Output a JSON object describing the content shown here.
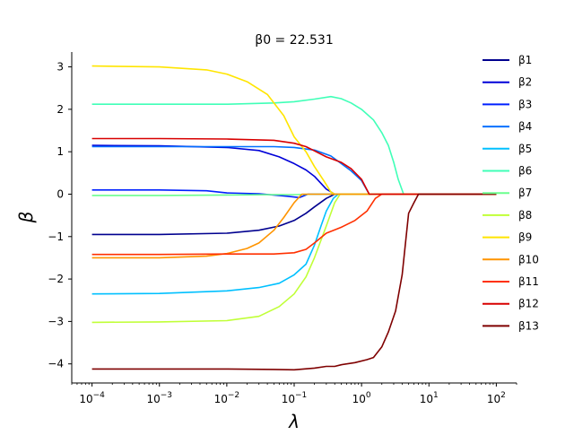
{
  "chart_data": {
    "type": "line",
    "title": "β0 = 22.531",
    "xlabel": "λ",
    "ylabel": "β",
    "xscale": "log",
    "xlim": [
      5e-05,
      200
    ],
    "ylim": [
      -4.45,
      3.35
    ],
    "x_ticks": [
      {
        "value": 0.0001,
        "mant": "10",
        "exp": "−4"
      },
      {
        "value": 0.001,
        "mant": "10",
        "exp": "−3"
      },
      {
        "value": 0.01,
        "mant": "10",
        "exp": "−2"
      },
      {
        "value": 0.1,
        "mant": "10",
        "exp": "−1"
      },
      {
        "value": 1,
        "mant": "10",
        "exp": "0"
      },
      {
        "value": 10,
        "mant": "10",
        "exp": "1"
      },
      {
        "value": 100,
        "mant": "10",
        "exp": "2"
      }
    ],
    "y_ticks": [
      {
        "value": 3,
        "label": "3"
      },
      {
        "value": 2,
        "label": "2"
      },
      {
        "value": 1,
        "label": "1"
      },
      {
        "value": 0,
        "label": "0"
      },
      {
        "value": -1,
        "label": "−1"
      },
      {
        "value": -2,
        "label": "−2"
      },
      {
        "value": -3,
        "label": "−3"
      },
      {
        "value": -4,
        "label": "−4"
      }
    ],
    "grid": false,
    "legend_position": "right",
    "series": [
      {
        "name": "β1",
        "color": "#00008f",
        "points": [
          [
            0.0001,
            -0.95
          ],
          [
            0.001,
            -0.95
          ],
          [
            0.01,
            -0.92
          ],
          [
            0.03,
            -0.85
          ],
          [
            0.06,
            -0.75
          ],
          [
            0.1,
            -0.62
          ],
          [
            0.15,
            -0.45
          ],
          [
            0.2,
            -0.3
          ],
          [
            0.3,
            -0.1
          ],
          [
            0.4,
            0
          ],
          [
            100,
            0
          ]
        ]
      },
      {
        "name": "β2",
        "color": "#0000d8",
        "points": [
          [
            0.0001,
            1.15
          ],
          [
            0.001,
            1.14
          ],
          [
            0.01,
            1.1
          ],
          [
            0.03,
            1.03
          ],
          [
            0.06,
            0.88
          ],
          [
            0.1,
            0.72
          ],
          [
            0.15,
            0.57
          ],
          [
            0.2,
            0.42
          ],
          [
            0.3,
            0.12
          ],
          [
            0.4,
            0
          ],
          [
            100,
            0
          ]
        ]
      },
      {
        "name": "β3",
        "color": "#0020ff",
        "points": [
          [
            0.0001,
            0.1
          ],
          [
            0.001,
            0.1
          ],
          [
            0.005,
            0.08
          ],
          [
            0.01,
            0.03
          ],
          [
            0.03,
            0.01
          ],
          [
            0.08,
            -0.05
          ],
          [
            0.12,
            -0.08
          ],
          [
            0.16,
            0
          ],
          [
            100,
            0
          ]
        ]
      },
      {
        "name": "β4",
        "color": "#0070ff",
        "points": [
          [
            0.0001,
            1.12
          ],
          [
            0.001,
            1.12
          ],
          [
            0.01,
            1.12
          ],
          [
            0.05,
            1.12
          ],
          [
            0.1,
            1.1
          ],
          [
            0.2,
            1.04
          ],
          [
            0.35,
            0.9
          ],
          [
            0.5,
            0.72
          ],
          [
            0.7,
            0.55
          ],
          [
            1,
            0.32
          ],
          [
            1.3,
            0
          ],
          [
            100,
            0
          ]
        ]
      },
      {
        "name": "β5",
        "color": "#00c0ff",
        "points": [
          [
            0.0001,
            -2.35
          ],
          [
            0.001,
            -2.34
          ],
          [
            0.01,
            -2.28
          ],
          [
            0.03,
            -2.2
          ],
          [
            0.06,
            -2.1
          ],
          [
            0.1,
            -1.9
          ],
          [
            0.15,
            -1.65
          ],
          [
            0.2,
            -1.2
          ],
          [
            0.25,
            -0.75
          ],
          [
            0.3,
            -0.4
          ],
          [
            0.38,
            -0.1
          ],
          [
            0.45,
            0
          ],
          [
            100,
            0
          ]
        ]
      },
      {
        "name": "β6",
        "color": "#40ffb7",
        "points": [
          [
            0.0001,
            2.12
          ],
          [
            0.001,
            2.12
          ],
          [
            0.01,
            2.12
          ],
          [
            0.05,
            2.15
          ],
          [
            0.1,
            2.18
          ],
          [
            0.2,
            2.24
          ],
          [
            0.35,
            2.3
          ],
          [
            0.5,
            2.25
          ],
          [
            0.7,
            2.15
          ],
          [
            1,
            2.0
          ],
          [
            1.5,
            1.75
          ],
          [
            2,
            1.45
          ],
          [
            2.5,
            1.15
          ],
          [
            3,
            0.75
          ],
          [
            3.5,
            0.35
          ],
          [
            4.2,
            0
          ],
          [
            100,
            0
          ]
        ]
      },
      {
        "name": "β7",
        "color": "#6aff8d",
        "points": [
          [
            0.0001,
            -0.03
          ],
          [
            0.001,
            -0.03
          ],
          [
            0.01,
            -0.02
          ],
          [
            0.05,
            -0.01
          ],
          [
            0.1,
            -0.01
          ],
          [
            0.2,
            0
          ],
          [
            100,
            0
          ]
        ]
      },
      {
        "name": "β8",
        "color": "#c0ff37",
        "points": [
          [
            0.0001,
            -3.02
          ],
          [
            0.001,
            -3.01
          ],
          [
            0.01,
            -2.98
          ],
          [
            0.03,
            -2.88
          ],
          [
            0.06,
            -2.65
          ],
          [
            0.1,
            -2.35
          ],
          [
            0.15,
            -1.95
          ],
          [
            0.2,
            -1.5
          ],
          [
            0.3,
            -0.75
          ],
          [
            0.4,
            -0.2
          ],
          [
            0.48,
            0
          ],
          [
            100,
            0
          ]
        ]
      },
      {
        "name": "β9",
        "color": "#ffe500",
        "points": [
          [
            0.0001,
            3.02
          ],
          [
            0.001,
            3.0
          ],
          [
            0.005,
            2.93
          ],
          [
            0.01,
            2.83
          ],
          [
            0.02,
            2.65
          ],
          [
            0.04,
            2.35
          ],
          [
            0.07,
            1.85
          ],
          [
            0.1,
            1.35
          ],
          [
            0.15,
            1.0
          ],
          [
            0.2,
            0.65
          ],
          [
            0.28,
            0.3
          ],
          [
            0.35,
            0.05
          ],
          [
            0.4,
            0
          ],
          [
            100,
            0
          ]
        ]
      },
      {
        "name": "β10",
        "color": "#ff9400",
        "points": [
          [
            0.0001,
            -1.5
          ],
          [
            0.001,
            -1.5
          ],
          [
            0.005,
            -1.46
          ],
          [
            0.01,
            -1.4
          ],
          [
            0.02,
            -1.28
          ],
          [
            0.03,
            -1.15
          ],
          [
            0.05,
            -0.85
          ],
          [
            0.07,
            -0.55
          ],
          [
            0.1,
            -0.2
          ],
          [
            0.13,
            0
          ],
          [
            100,
            0
          ]
        ]
      },
      {
        "name": "β11",
        "color": "#ff3000",
        "points": [
          [
            0.0001,
            -1.42
          ],
          [
            0.001,
            -1.42
          ],
          [
            0.01,
            -1.41
          ],
          [
            0.05,
            -1.41
          ],
          [
            0.1,
            -1.38
          ],
          [
            0.15,
            -1.3
          ],
          [
            0.2,
            -1.15
          ],
          [
            0.3,
            -0.92
          ],
          [
            0.5,
            -0.78
          ],
          [
            0.8,
            -0.62
          ],
          [
            1.2,
            -0.4
          ],
          [
            1.6,
            -0.1
          ],
          [
            2,
            0
          ],
          [
            100,
            0
          ]
        ]
      },
      {
        "name": "β12",
        "color": "#d80000",
        "points": [
          [
            0.0001,
            1.31
          ],
          [
            0.001,
            1.31
          ],
          [
            0.01,
            1.3
          ],
          [
            0.05,
            1.27
          ],
          [
            0.1,
            1.2
          ],
          [
            0.15,
            1.12
          ],
          [
            0.2,
            1.02
          ],
          [
            0.3,
            0.88
          ],
          [
            0.5,
            0.75
          ],
          [
            0.7,
            0.6
          ],
          [
            1,
            0.35
          ],
          [
            1.3,
            0
          ],
          [
            100,
            0
          ]
        ]
      },
      {
        "name": "β13",
        "color": "#7f0000",
        "points": [
          [
            0.0001,
            -4.12
          ],
          [
            0.001,
            -4.12
          ],
          [
            0.01,
            -4.12
          ],
          [
            0.05,
            -4.13
          ],
          [
            0.1,
            -4.14
          ],
          [
            0.2,
            -4.1
          ],
          [
            0.3,
            -4.06
          ],
          [
            0.4,
            -4.06
          ],
          [
            0.5,
            -4.02
          ],
          [
            0.8,
            -3.97
          ],
          [
            1.2,
            -3.9
          ],
          [
            1.5,
            -3.85
          ],
          [
            2,
            -3.6
          ],
          [
            2.5,
            -3.25
          ],
          [
            3.2,
            -2.75
          ],
          [
            4,
            -1.9
          ],
          [
            5,
            -0.45
          ],
          [
            6,
            -0.2
          ],
          [
            7,
            0
          ],
          [
            100,
            0
          ]
        ]
      }
    ]
  }
}
